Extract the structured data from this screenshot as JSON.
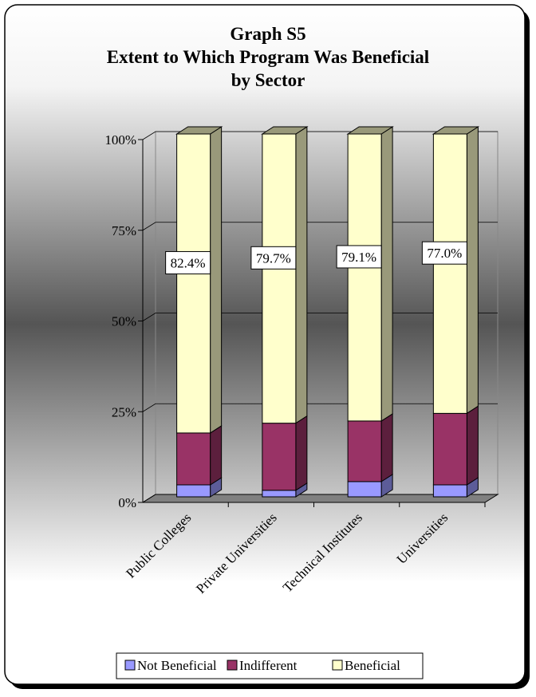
{
  "chart_data": {
    "type": "bar3d_stacked",
    "title": [
      "Graph S5",
      "Extent to Which Program Was Beneficial",
      "by Sector"
    ],
    "categories": [
      "Public Colleges",
      "Private Universities",
      "Technical Institutes",
      "Universities"
    ],
    "series": [
      {
        "name": "Not Beneficial",
        "color": "#9999ff",
        "side": "#5c5c99",
        "values": [
          3.3,
          1.8,
          4.2,
          3.3
        ]
      },
      {
        "name": "Indifferent",
        "color": "#993366",
        "side": "#5c1f3d",
        "values": [
          14.3,
          18.5,
          16.7,
          19.7
        ]
      },
      {
        "name": "Beneficial",
        "color": "#ffffcc",
        "side": "#99997a",
        "values": [
          82.4,
          79.7,
          79.1,
          77.0
        ],
        "value_labels": [
          "82.4%",
          "79.7%",
          "79.1%",
          "77.0%"
        ]
      }
    ],
    "ylim": [
      0,
      100
    ],
    "yticks": [
      {
        "value": 0,
        "label": "0%"
      },
      {
        "value": 25,
        "label": "25%"
      },
      {
        "value": 50,
        "label": "50%"
      },
      {
        "value": 75,
        "label": "75%"
      },
      {
        "value": 100,
        "label": "100%"
      }
    ],
    "grid": true,
    "legend": "bottom"
  }
}
